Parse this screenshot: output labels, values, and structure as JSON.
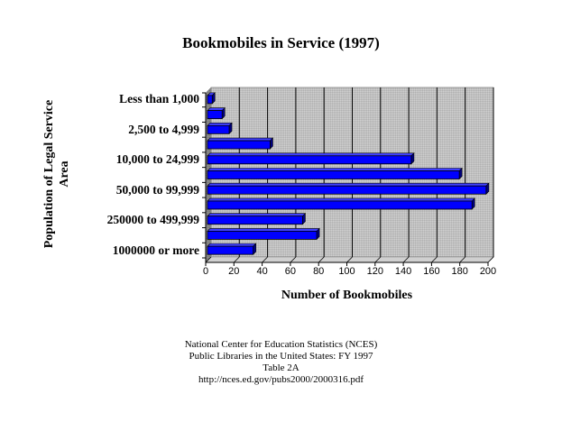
{
  "chart_data": {
    "type": "bar",
    "orientation": "horizontal",
    "style": "3d",
    "title": "Bookmobiles in Service (1997)",
    "xlabel": "Number of Bookmobiles",
    "ylabel": "Population of Legal Service Area",
    "xlim": [
      0,
      200
    ],
    "xticks": [
      0,
      20,
      40,
      60,
      80,
      100,
      120,
      140,
      160,
      180,
      200
    ],
    "grid": "vertical",
    "categories": [
      "Less than 1,000",
      "",
      "2,500 to 4,999",
      "",
      "10,000 to 24,999",
      "",
      "50,000 to 99,999",
      "",
      "250000 to 499,999",
      "",
      "1000000 or more"
    ],
    "values": [
      4,
      11,
      16,
      45,
      145,
      179,
      198,
      188,
      68,
      78,
      33
    ],
    "bar_color": "#0000ff",
    "wall_color": "#c0c0c0",
    "legend": null
  },
  "title": "Bookmobiles in Service (1997)",
  "ylabel_line1": "Population of Legal Service",
  "ylabel_line2": "Area",
  "xlabel": "Number of Bookmobiles",
  "source": {
    "line1": "National Center for Education Statistics (NCES)",
    "line2": "Public Libraries in the United States: FY 1997",
    "line3": "Table 2A",
    "line4": "http://nces.ed.gov/pubs2000/2000316.pdf"
  }
}
